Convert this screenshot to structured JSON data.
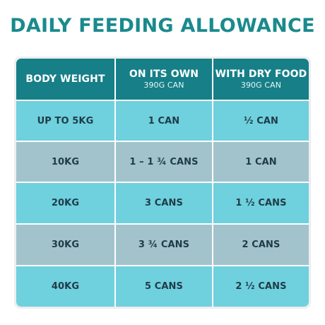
{
  "title": "DAILY FEEDING ALLOWANCE",
  "table": {
    "headers": [
      {
        "main": "BODY WEIGHT",
        "sub": ""
      },
      {
        "main": "ON ITS OWN",
        "sub": "390G CAN"
      },
      {
        "main": "WITH DRY FOOD",
        "sub": "390G CAN"
      }
    ],
    "rows": [
      [
        "UP TO 5KG",
        "1 CAN",
        "½ CAN"
      ],
      [
        "10KG",
        "1 – 1 ¾ CANS",
        "1 CAN"
      ],
      [
        "20KG",
        "3 CANS",
        "1 ½ CANS"
      ],
      [
        "30KG",
        "3 ¾ CANS",
        "2 CANS"
      ],
      [
        "40KG",
        "5 CANS",
        "2 ½ CANS"
      ]
    ]
  },
  "colors": {
    "title": "#1a8a8d",
    "header_bg": "#167f88",
    "row_light": "#6fd0de",
    "row_dark": "#a2c3cc",
    "frame": "#eeeeee"
  }
}
